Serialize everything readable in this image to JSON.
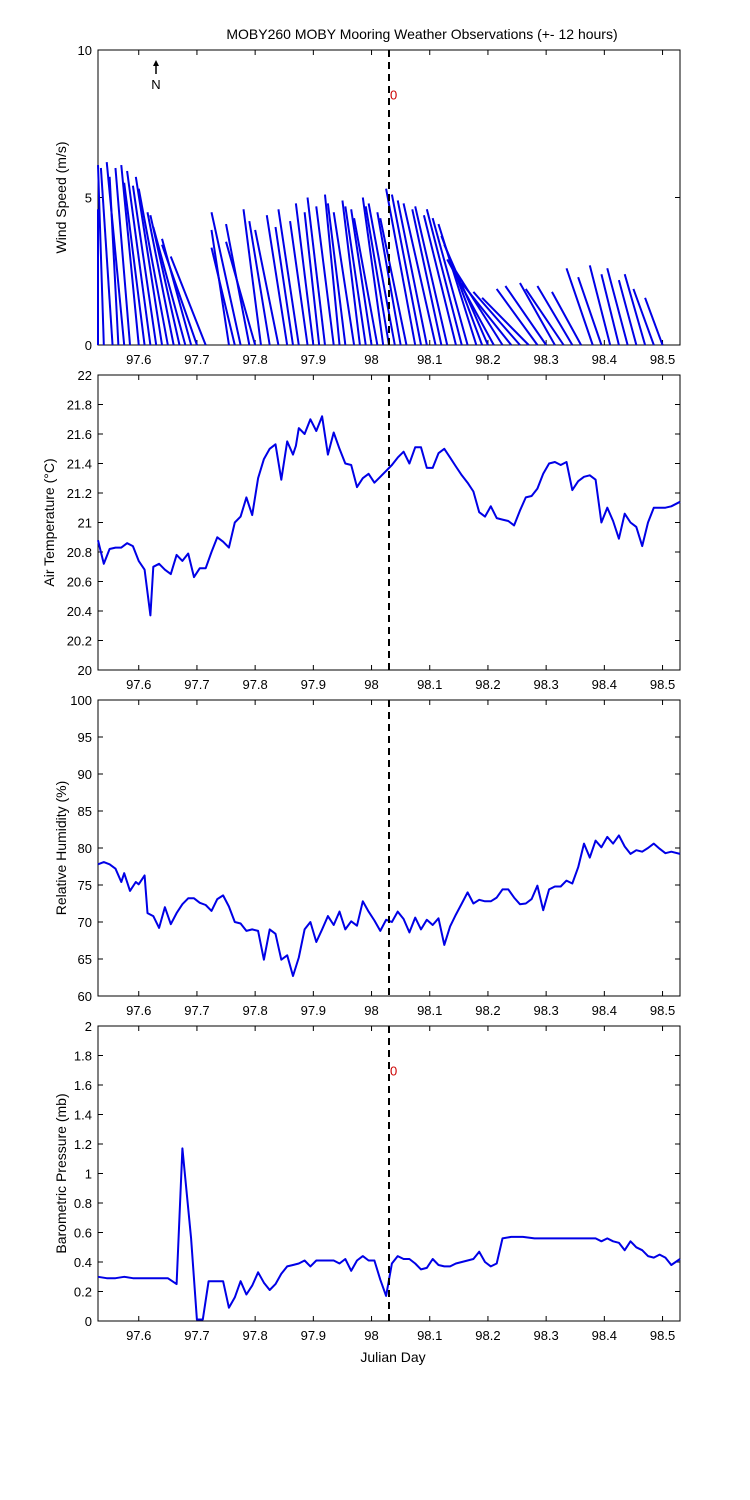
{
  "title": "MOBY260 MOBY Mooring Weather Observations (+- 12 hours)",
  "north_label": "N",
  "marker_label": "0",
  "x_axis_label": "Julian Day",
  "colors": {
    "series": "#0000e6",
    "marker_text": "#cc0000",
    "axes": "#000000"
  },
  "chart_data": [
    {
      "type": "quiver",
      "ylabel": "Wind Speed (m/s)",
      "xlim": [
        97.53,
        98.53
      ],
      "ylim": [
        0,
        10
      ],
      "xticks": [
        97.6,
        97.7,
        97.8,
        97.9,
        98,
        98.1,
        98.2,
        98.3,
        98.4,
        98.5
      ],
      "yticks": [
        0,
        5,
        10
      ],
      "marker_x": 98.03,
      "marker_label_y": 8.5,
      "vectors": [
        {
          "x": 97.53,
          "dx": 0.0,
          "dy": 4.6
        },
        {
          "x": 97.54,
          "dx": -0.01,
          "dy": 6.1
        },
        {
          "x": 97.555,
          "dx": -0.02,
          "dy": 6.0
        },
        {
          "x": 97.565,
          "dx": -0.015,
          "dy": 5.7
        },
        {
          "x": 97.575,
          "dx": -0.03,
          "dy": 6.2
        },
        {
          "x": 97.585,
          "dx": -0.025,
          "dy": 6.0
        },
        {
          "x": 97.6,
          "dx": -0.03,
          "dy": 6.1
        },
        {
          "x": 97.61,
          "dx": -0.035,
          "dy": 5.5
        },
        {
          "x": 97.62,
          "dx": -0.04,
          "dy": 5.9
        },
        {
          "x": 97.63,
          "dx": -0.04,
          "dy": 5.4
        },
        {
          "x": 97.64,
          "dx": -0.045,
          "dy": 5.7
        },
        {
          "x": 97.65,
          "dx": -0.05,
          "dy": 5.3
        },
        {
          "x": 97.66,
          "dx": -0.045,
          "dy": 4.5
        },
        {
          "x": 97.67,
          "dx": -0.05,
          "dy": 4.4
        },
        {
          "x": 97.68,
          "dx": -0.055,
          "dy": 4.0
        },
        {
          "x": 97.69,
          "dx": -0.05,
          "dy": 3.6
        },
        {
          "x": 97.7,
          "dx": -0.06,
          "dy": 3.4
        },
        {
          "x": 97.715,
          "dx": -0.06,
          "dy": 3.0
        },
        {
          "x": 97.755,
          "dx": -0.03,
          "dy": 3.9
        },
        {
          "x": 97.765,
          "dx": -0.04,
          "dy": 3.3
        },
        {
          "x": 97.775,
          "dx": -0.05,
          "dy": 4.5
        },
        {
          "x": 97.79,
          "dx": -0.04,
          "dy": 4.1
        },
        {
          "x": 97.8,
          "dx": -0.05,
          "dy": 3.5
        },
        {
          "x": 97.81,
          "dx": -0.03,
          "dy": 4.6
        },
        {
          "x": 97.825,
          "dx": -0.035,
          "dy": 4.2
        },
        {
          "x": 97.84,
          "dx": -0.04,
          "dy": 3.9
        },
        {
          "x": 97.855,
          "dx": -0.035,
          "dy": 4.4
        },
        {
          "x": 97.865,
          "dx": -0.03,
          "dy": 4.0
        },
        {
          "x": 97.875,
          "dx": -0.035,
          "dy": 4.6
        },
        {
          "x": 97.89,
          "dx": -0.03,
          "dy": 4.2
        },
        {
          "x": 97.9,
          "dx": -0.03,
          "dy": 4.8
        },
        {
          "x": 97.91,
          "dx": -0.025,
          "dy": 4.5
        },
        {
          "x": 97.92,
          "dx": -0.03,
          "dy": 5.0
        },
        {
          "x": 97.935,
          "dx": -0.03,
          "dy": 4.7
        },
        {
          "x": 97.945,
          "dx": -0.025,
          "dy": 5.1
        },
        {
          "x": 97.955,
          "dx": -0.03,
          "dy": 4.8
        },
        {
          "x": 97.97,
          "dx": -0.035,
          "dy": 4.5
        },
        {
          "x": 97.98,
          "dx": -0.03,
          "dy": 4.9
        },
        {
          "x": 97.99,
          "dx": -0.035,
          "dy": 4.7
        },
        {
          "x": 98.0,
          "dx": -0.035,
          "dy": 4.6
        },
        {
          "x": 98.01,
          "dx": -0.04,
          "dy": 4.3
        },
        {
          "x": 98.02,
          "dx": -0.035,
          "dy": 5.0
        },
        {
          "x": 98.03,
          "dx": -0.04,
          "dy": 4.7
        },
        {
          "x": 98.04,
          "dx": -0.045,
          "dy": 4.8
        },
        {
          "x": 98.05,
          "dx": -0.04,
          "dy": 4.5
        },
        {
          "x": 98.06,
          "dx": -0.045,
          "dy": 4.3
        },
        {
          "x": 98.075,
          "dx": -0.05,
          "dy": 5.3
        },
        {
          "x": 98.085,
          "dx": -0.05,
          "dy": 5.1
        },
        {
          "x": 98.095,
          "dx": -0.05,
          "dy": 4.9
        },
        {
          "x": 98.11,
          "dx": -0.055,
          "dy": 4.8
        },
        {
          "x": 98.12,
          "dx": -0.05,
          "dy": 4.6
        },
        {
          "x": 98.13,
          "dx": -0.055,
          "dy": 4.7
        },
        {
          "x": 98.145,
          "dx": -0.055,
          "dy": 4.4
        },
        {
          "x": 98.155,
          "dx": -0.06,
          "dy": 4.6
        },
        {
          "x": 98.165,
          "dx": -0.06,
          "dy": 4.3
        },
        {
          "x": 98.18,
          "dx": -0.065,
          "dy": 4.1
        },
        {
          "x": 98.19,
          "dx": -0.07,
          "dy": 3.7
        },
        {
          "x": 98.2,
          "dx": -0.075,
          "dy": 3.4
        },
        {
          "x": 98.21,
          "dx": -0.08,
          "dy": 2.9
        },
        {
          "x": 98.225,
          "dx": -0.08,
          "dy": 2.5
        },
        {
          "x": 98.24,
          "dx": -0.085,
          "dy": 2.1
        },
        {
          "x": 98.255,
          "dx": -0.08,
          "dy": 1.8
        },
        {
          "x": 98.27,
          "dx": -0.08,
          "dy": 1.6
        },
        {
          "x": 98.285,
          "dx": -0.07,
          "dy": 1.9
        },
        {
          "x": 98.3,
          "dx": -0.07,
          "dy": 2.0
        },
        {
          "x": 98.315,
          "dx": -0.06,
          "dy": 2.1
        },
        {
          "x": 98.33,
          "dx": -0.065,
          "dy": 1.9
        },
        {
          "x": 98.345,
          "dx": -0.06,
          "dy": 2.0
        },
        {
          "x": 98.36,
          "dx": -0.05,
          "dy": 1.8
        },
        {
          "x": 98.38,
          "dx": -0.045,
          "dy": 2.6
        },
        {
          "x": 98.395,
          "dx": -0.04,
          "dy": 2.3
        },
        {
          "x": 98.41,
          "dx": -0.035,
          "dy": 2.7
        },
        {
          "x": 98.425,
          "dx": -0.03,
          "dy": 2.4
        },
        {
          "x": 98.44,
          "dx": -0.035,
          "dy": 2.6
        },
        {
          "x": 98.455,
          "dx": -0.03,
          "dy": 2.2
        },
        {
          "x": 98.47,
          "dx": -0.035,
          "dy": 2.4
        },
        {
          "x": 98.485,
          "dx": -0.035,
          "dy": 1.9
        },
        {
          "x": 98.5,
          "dx": -0.03,
          "dy": 1.6
        }
      ]
    },
    {
      "type": "line",
      "ylabel": "Air Temperature (°C)",
      "xlim": [
        97.53,
        98.53
      ],
      "ylim": [
        20,
        22
      ],
      "xticks": [
        97.6,
        97.7,
        97.8,
        97.9,
        98,
        98.1,
        98.2,
        98.3,
        98.4,
        98.5
      ],
      "yticks": [
        20,
        20.2,
        20.4,
        20.6,
        20.8,
        21,
        21.2,
        21.4,
        21.6,
        21.8,
        22
      ],
      "marker_x": 98.03,
      "x": [
        97.53,
        97.54,
        97.55,
        97.56,
        97.57,
        97.58,
        97.59,
        97.6,
        97.61,
        97.62,
        97.625,
        97.635,
        97.645,
        97.655,
        97.665,
        97.675,
        97.685,
        97.695,
        97.705,
        97.715,
        97.725,
        97.735,
        97.745,
        97.755,
        97.765,
        97.775,
        97.785,
        97.795,
        97.805,
        97.815,
        97.825,
        97.835,
        97.845,
        97.855,
        97.865,
        97.87,
        97.875,
        97.885,
        97.895,
        97.905,
        97.915,
        97.925,
        97.935,
        97.945,
        97.955,
        97.965,
        97.975,
        97.985,
        97.995,
        98.005,
        98.015,
        98.025,
        98.035,
        98.045,
        98.055,
        98.065,
        98.075,
        98.085,
        98.095,
        98.105,
        98.115,
        98.125,
        98.135,
        98.145,
        98.155,
        98.165,
        98.175,
        98.185,
        98.195,
        98.205,
        98.215,
        98.225,
        98.235,
        98.245,
        98.255,
        98.265,
        98.275,
        98.285,
        98.295,
        98.305,
        98.315,
        98.325,
        98.335,
        98.345,
        98.355,
        98.365,
        98.375,
        98.385,
        98.395,
        98.405,
        98.415,
        98.425,
        98.435,
        98.445,
        98.455,
        98.465,
        98.475,
        98.485,
        98.495,
        98.505,
        98.515,
        98.53
      ],
      "values": [
        20.88,
        20.72,
        20.82,
        20.83,
        20.83,
        20.86,
        20.84,
        20.74,
        20.68,
        20.37,
        20.7,
        20.72,
        20.68,
        20.65,
        20.78,
        20.74,
        20.79,
        20.63,
        20.69,
        20.69,
        20.8,
        20.9,
        20.87,
        20.83,
        21.0,
        21.04,
        21.17,
        21.05,
        21.3,
        21.43,
        21.5,
        21.53,
        21.29,
        21.55,
        21.46,
        21.52,
        21.64,
        21.6,
        21.7,
        21.62,
        21.72,
        21.46,
        21.61,
        21.5,
        21.4,
        21.39,
        21.24,
        21.3,
        21.33,
        21.27,
        21.31,
        21.35,
        21.39,
        21.44,
        21.48,
        21.4,
        21.51,
        21.51,
        21.37,
        21.37,
        21.47,
        21.5,
        21.44,
        21.38,
        21.32,
        21.27,
        21.21,
        21.07,
        21.04,
        21.11,
        21.03,
        21.02,
        21.01,
        20.98,
        21.08,
        21.17,
        21.18,
        21.23,
        21.33,
        21.4,
        21.41,
        21.39,
        21.41,
        21.22,
        21.28,
        21.31,
        21.32,
        21.29,
        21.0,
        21.1,
        21.01,
        20.89,
        21.06,
        21.0,
        20.97,
        20.84,
        21.0,
        21.1,
        21.1,
        21.1,
        21.11,
        21.14
      ]
    },
    {
      "type": "line",
      "ylabel": "Relative Humidity (%)",
      "xlim": [
        97.53,
        98.53
      ],
      "ylim": [
        60,
        100
      ],
      "xticks": [
        97.6,
        97.7,
        97.8,
        97.9,
        98,
        98.1,
        98.2,
        98.3,
        98.4,
        98.5
      ],
      "yticks": [
        60,
        65,
        70,
        75,
        80,
        85,
        90,
        95,
        100
      ],
      "marker_x": 98.03,
      "x": [
        97.53,
        97.54,
        97.55,
        97.56,
        97.57,
        97.575,
        97.585,
        97.595,
        97.6,
        97.61,
        97.615,
        97.625,
        97.635,
        97.645,
        97.655,
        97.665,
        97.675,
        97.685,
        97.695,
        97.705,
        97.715,
        97.725,
        97.735,
        97.745,
        97.755,
        97.765,
        97.775,
        97.785,
        97.795,
        97.805,
        97.815,
        97.825,
        97.835,
        97.845,
        97.855,
        97.865,
        97.875,
        97.885,
        97.895,
        97.905,
        97.915,
        97.925,
        97.935,
        97.945,
        97.955,
        97.965,
        97.975,
        97.985,
        97.995,
        98.005,
        98.015,
        98.025,
        98.035,
        98.045,
        98.055,
        98.065,
        98.075,
        98.085,
        98.095,
        98.105,
        98.115,
        98.125,
        98.135,
        98.145,
        98.155,
        98.165,
        98.175,
        98.185,
        98.195,
        98.205,
        98.215,
        98.225,
        98.235,
        98.245,
        98.255,
        98.265,
        98.275,
        98.285,
        98.295,
        98.305,
        98.315,
        98.325,
        98.335,
        98.345,
        98.355,
        98.365,
        98.375,
        98.385,
        98.395,
        98.405,
        98.415,
        98.425,
        98.435,
        98.445,
        98.455,
        98.465,
        98.475,
        98.485,
        98.495,
        98.505,
        98.515,
        98.53
      ],
      "values": [
        77.8,
        78.1,
        77.8,
        77.2,
        75.4,
        76.6,
        74.2,
        75.4,
        75.1,
        76.3,
        71.2,
        70.8,
        69.2,
        72.0,
        69.7,
        71.2,
        72.4,
        73.2,
        73.2,
        72.6,
        72.3,
        71.5,
        73.1,
        73.6,
        72.1,
        70.0,
        69.8,
        68.8,
        69.0,
        68.8,
        64.9,
        69.0,
        68.4,
        64.9,
        65.5,
        62.7,
        65.2,
        69.0,
        70.0,
        67.3,
        69.0,
        70.8,
        69.6,
        71.4,
        69.0,
        70.1,
        69.5,
        72.8,
        71.4,
        70.2,
        68.8,
        70.3,
        70.0,
        71.4,
        70.4,
        68.6,
        70.6,
        69.0,
        70.3,
        69.6,
        70.5,
        66.9,
        69.4,
        71.0,
        72.5,
        74.0,
        72.5,
        73.0,
        72.8,
        72.8,
        73.3,
        74.4,
        74.4,
        73.3,
        72.4,
        72.5,
        73.1,
        74.9,
        71.6,
        74.4,
        74.8,
        74.8,
        75.6,
        75.2,
        77.4,
        80.6,
        78.7,
        81.0,
        80.1,
        81.5,
        80.6,
        81.7,
        80.2,
        79.2,
        79.7,
        79.5,
        80.0,
        80.6,
        79.9,
        79.3,
        79.5,
        79.2
      ]
    },
    {
      "type": "line",
      "ylabel": "Barometric Pressure (mb)",
      "xlabel": "Julian Day",
      "xlim": [
        97.53,
        98.53
      ],
      "ylim": [
        0,
        2
      ],
      "xticks": [
        97.6,
        97.7,
        97.8,
        97.9,
        98,
        98.1,
        98.2,
        98.3,
        98.4,
        98.5
      ],
      "yticks": [
        0,
        0.2,
        0.4,
        0.6,
        0.8,
        1,
        1.2,
        1.4,
        1.6,
        1.8,
        2
      ],
      "marker_x": 98.03,
      "marker_label_y": 1.7,
      "x": [
        97.53,
        97.545,
        97.56,
        97.575,
        97.59,
        97.605,
        97.62,
        97.635,
        97.65,
        97.665,
        97.675,
        97.69,
        97.7,
        97.71,
        97.72,
        97.735,
        97.745,
        97.755,
        97.765,
        97.775,
        97.785,
        97.795,
        97.805,
        97.815,
        97.825,
        97.835,
        97.845,
        97.855,
        97.865,
        97.875,
        97.885,
        97.895,
        97.905,
        97.915,
        97.925,
        97.935,
        97.945,
        97.955,
        97.965,
        97.975,
        97.985,
        97.995,
        98.005,
        98.015,
        98.025,
        98.035,
        98.045,
        98.055,
        98.065,
        98.075,
        98.085,
        98.095,
        98.105,
        98.115,
        98.125,
        98.135,
        98.145,
        98.155,
        98.165,
        98.175,
        98.185,
        98.195,
        98.205,
        98.215,
        98.225,
        98.24,
        98.26,
        98.28,
        98.3,
        98.32,
        98.34,
        98.355,
        98.365,
        98.375,
        98.385,
        98.395,
        98.405,
        98.415,
        98.425,
        98.435,
        98.445,
        98.455,
        98.465,
        98.475,
        98.485,
        98.495,
        98.505,
        98.515,
        98.53
      ],
      "values": [
        0.3,
        0.29,
        0.29,
        0.3,
        0.29,
        0.29,
        0.29,
        0.29,
        0.29,
        0.25,
        1.17,
        0.56,
        0.01,
        0.01,
        0.27,
        0.27,
        0.27,
        0.09,
        0.16,
        0.27,
        0.18,
        0.24,
        0.33,
        0.26,
        0.21,
        0.25,
        0.32,
        0.37,
        0.38,
        0.39,
        0.41,
        0.37,
        0.41,
        0.41,
        0.41,
        0.41,
        0.39,
        0.42,
        0.34,
        0.41,
        0.44,
        0.41,
        0.41,
        0.28,
        0.17,
        0.39,
        0.44,
        0.42,
        0.42,
        0.39,
        0.35,
        0.36,
        0.42,
        0.38,
        0.37,
        0.37,
        0.39,
        0.4,
        0.41,
        0.42,
        0.47,
        0.4,
        0.37,
        0.39,
        0.56,
        0.57,
        0.57,
        0.56,
        0.56,
        0.56,
        0.56,
        0.56,
        0.56,
        0.56,
        0.56,
        0.54,
        0.56,
        0.54,
        0.53,
        0.48,
        0.54,
        0.5,
        0.48,
        0.44,
        0.43,
        0.45,
        0.43,
        0.38,
        0.42
      ]
    }
  ]
}
